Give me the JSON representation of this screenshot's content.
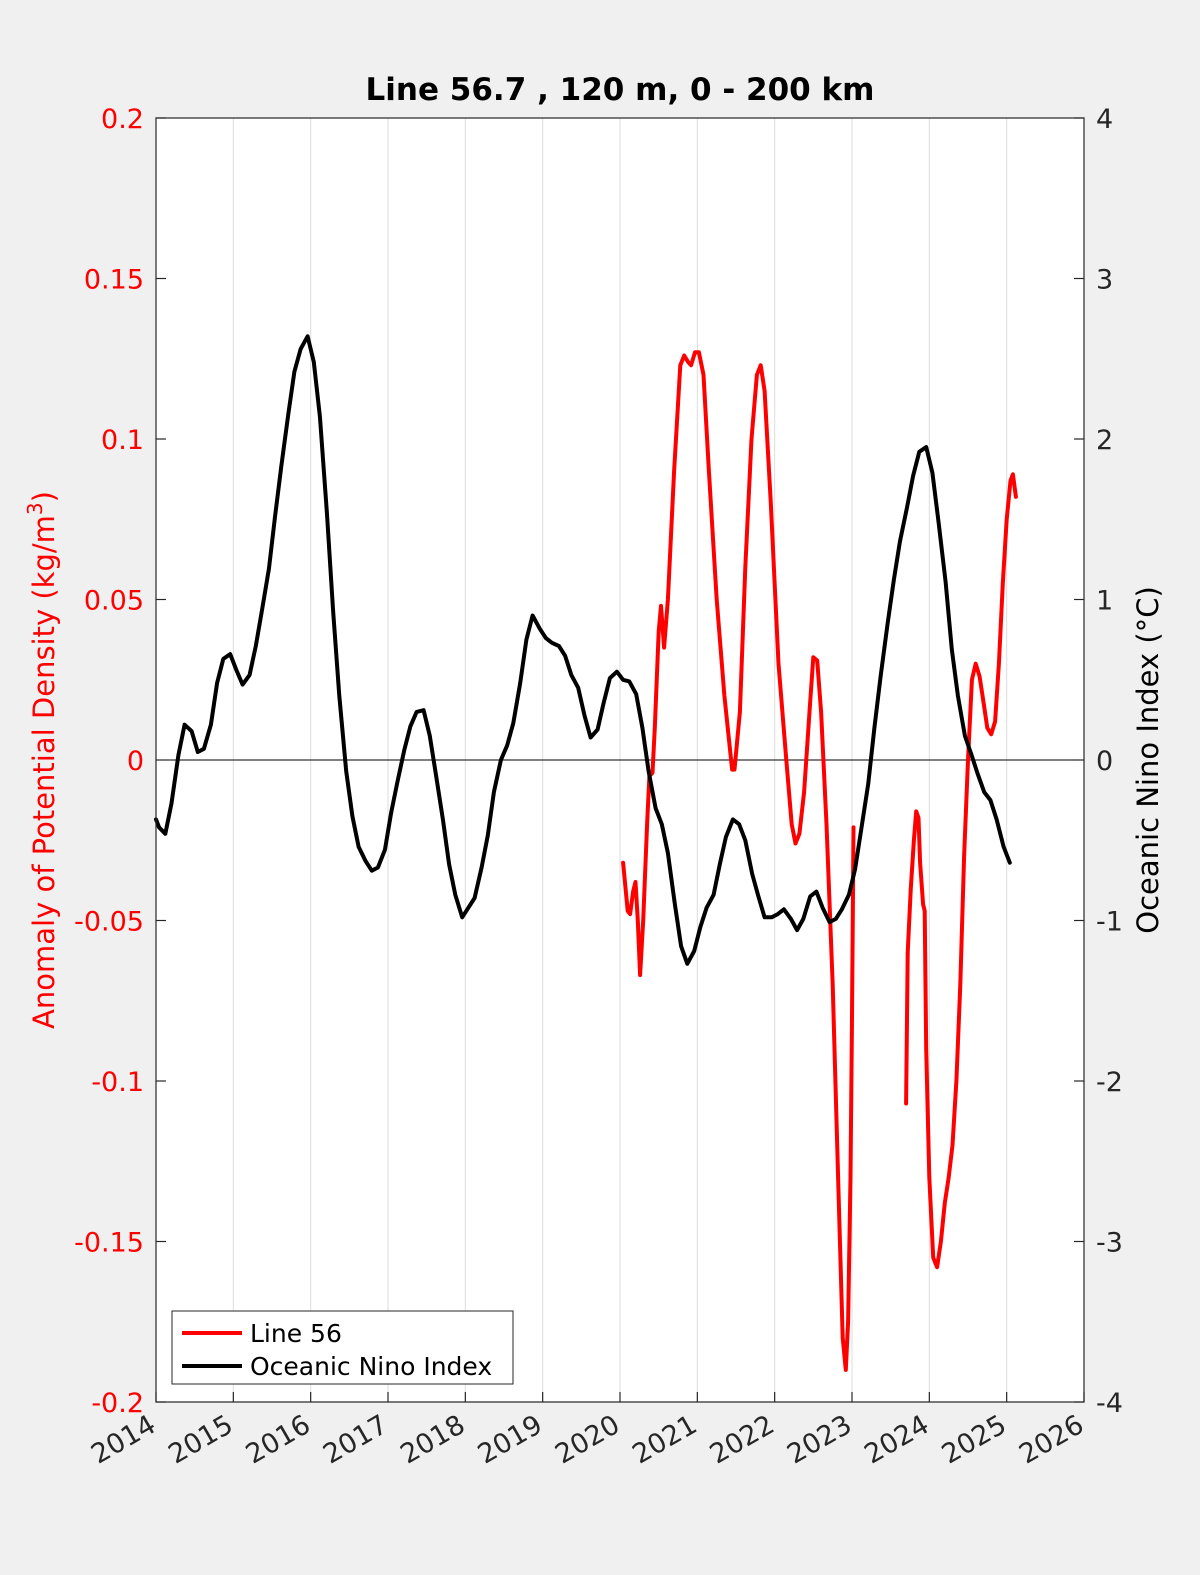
{
  "chart_data": {
    "type": "line",
    "title": "Line 56.7 , 120 m, 0 - 200 km",
    "ylabel_left": "Anomaly of Potential Density (kg/m",
    "ylabel_left_sup": "3",
    "ylabel_left_tail": ")",
    "ylabel_right": "Oceanic Nino Index (°C)",
    "xlim": [
      2014,
      2026
    ],
    "ylim_left": [
      -0.2,
      0.2
    ],
    "ylim_right": [
      -4,
      4
    ],
    "grid": "vertical",
    "legend_position": "bottom-left",
    "x_ticks": [
      2014,
      2015,
      2016,
      2017,
      2018,
      2019,
      2020,
      2021,
      2022,
      2023,
      2024,
      2025,
      2026
    ],
    "x_tick_labels": [
      "2014",
      "2015",
      "2016",
      "2017",
      "2018",
      "2019",
      "2020",
      "2021",
      "2022",
      "2023",
      "2024",
      "2025",
      "2026"
    ],
    "y_left_ticks": [
      0.2,
      0.15,
      0.1,
      0.05,
      0,
      -0.05,
      -0.1,
      -0.15,
      -0.2
    ],
    "y_left_tick_labels": [
      "0.2",
      "0.15",
      "0.1",
      "0.05",
      "0",
      "-0.05",
      "-0.1",
      "-0.15",
      "-0.2"
    ],
    "y_right_ticks": [
      4,
      3,
      2,
      1,
      0,
      -1,
      -2,
      -3,
      -4
    ],
    "y_right_tick_labels": [
      "4",
      "3",
      "2",
      "1",
      "0",
      "-1",
      "-2",
      "-3",
      "-4"
    ],
    "colors": {
      "line56": "#ff0000",
      "oni": "#000000",
      "left_axis": "#ff0000",
      "right_axis": "#262626"
    },
    "series": [
      {
        "name": "Line 56",
        "axis": "left",
        "color": "#ff0000",
        "segments": [
          [
            [
              2020.04,
              -0.032
            ],
            [
              2020.1,
              -0.047
            ],
            [
              2020.13,
              -0.048
            ],
            [
              2020.17,
              -0.041
            ],
            [
              2020.2,
              -0.038
            ],
            [
              2020.23,
              -0.05
            ],
            [
              2020.26,
              -0.067
            ],
            [
              2020.3,
              -0.05
            ],
            [
              2020.35,
              -0.02
            ],
            [
              2020.38,
              -0.005
            ],
            [
              2020.42,
              -0.004
            ],
            [
              2020.45,
              0.01
            ],
            [
              2020.5,
              0.04
            ],
            [
              2020.53,
              0.048
            ],
            [
              2020.57,
              0.035
            ],
            [
              2020.62,
              0.05
            ],
            [
              2020.7,
              0.09
            ],
            [
              2020.78,
              0.123
            ],
            [
              2020.83,
              0.126
            ],
            [
              2020.88,
              0.124
            ],
            [
              2020.92,
              0.123
            ],
            [
              2020.97,
              0.127
            ],
            [
              2021.02,
              0.127
            ],
            [
              2021.08,
              0.12
            ],
            [
              2021.15,
              0.09
            ],
            [
              2021.25,
              0.05
            ],
            [
              2021.35,
              0.02
            ],
            [
              2021.45,
              -0.003
            ],
            [
              2021.48,
              -0.003
            ],
            [
              2021.55,
              0.015
            ],
            [
              2021.62,
              0.06
            ],
            [
              2021.7,
              0.1
            ],
            [
              2021.77,
              0.12
            ],
            [
              2021.82,
              0.123
            ],
            [
              2021.87,
              0.115
            ],
            [
              2021.95,
              0.08
            ],
            [
              2022.05,
              0.03
            ],
            [
              2022.15,
              0.0
            ],
            [
              2022.22,
              -0.02
            ],
            [
              2022.27,
              -0.026
            ],
            [
              2022.32,
              -0.023
            ],
            [
              2022.38,
              -0.01
            ],
            [
              2022.45,
              0.015
            ],
            [
              2022.5,
              0.032
            ],
            [
              2022.55,
              0.031
            ],
            [
              2022.6,
              0.015
            ],
            [
              2022.67,
              -0.02
            ],
            [
              2022.75,
              -0.07
            ],
            [
              2022.82,
              -0.13
            ],
            [
              2022.88,
              -0.18
            ],
            [
              2022.92,
              -0.19
            ],
            [
              2022.95,
              -0.175
            ],
            [
              2022.98,
              -0.13
            ],
            [
              2023.0,
              -0.08
            ],
            [
              2023.02,
              -0.021
            ]
          ],
          [
            [
              2023.7,
              -0.107
            ],
            [
              2023.72,
              -0.06
            ],
            [
              2023.76,
              -0.04
            ],
            [
              2023.8,
              -0.025
            ],
            [
              2023.83,
              -0.016
            ],
            [
              2023.86,
              -0.018
            ],
            [
              2023.88,
              -0.032
            ],
            [
              2023.92,
              -0.045
            ],
            [
              2023.94,
              -0.047
            ],
            [
              2023.96,
              -0.09
            ],
            [
              2024.0,
              -0.13
            ],
            [
              2024.05,
              -0.155
            ],
            [
              2024.1,
              -0.158
            ],
            [
              2024.15,
              -0.15
            ],
            [
              2024.2,
              -0.138
            ],
            [
              2024.25,
              -0.13
            ],
            [
              2024.3,
              -0.12
            ],
            [
              2024.35,
              -0.1
            ],
            [
              2024.4,
              -0.07
            ],
            [
              2024.45,
              -0.03
            ],
            [
              2024.5,
              0.0
            ],
            [
              2024.55,
              0.025
            ],
            [
              2024.6,
              0.03
            ],
            [
              2024.65,
              0.026
            ],
            [
              2024.7,
              0.018
            ],
            [
              2024.75,
              0.01
            ],
            [
              2024.8,
              0.008
            ],
            [
              2024.85,
              0.012
            ],
            [
              2024.9,
              0.03
            ],
            [
              2024.95,
              0.055
            ],
            [
              2025.0,
              0.075
            ],
            [
              2025.05,
              0.087
            ],
            [
              2025.08,
              0.089
            ],
            [
              2025.12,
              0.082
            ]
          ]
        ]
      },
      {
        "name": "Oceanic Nino Index",
        "axis": "right",
        "color": "#000000",
        "points": [
          [
            2014.0,
            -0.37
          ],
          [
            2014.04,
            -0.42
          ],
          [
            2014.12,
            -0.46
          ],
          [
            2014.2,
            -0.27
          ],
          [
            2014.29,
            0.03
          ],
          [
            2014.37,
            0.22
          ],
          [
            2014.46,
            0.18
          ],
          [
            2014.54,
            0.05
          ],
          [
            2014.62,
            0.07
          ],
          [
            2014.71,
            0.22
          ],
          [
            2014.79,
            0.48
          ],
          [
            2014.87,
            0.63
          ],
          [
            2014.96,
            0.66
          ],
          [
            2015.04,
            0.56
          ],
          [
            2015.12,
            0.47
          ],
          [
            2015.21,
            0.53
          ],
          [
            2015.29,
            0.71
          ],
          [
            2015.37,
            0.93
          ],
          [
            2015.46,
            1.19
          ],
          [
            2015.54,
            1.52
          ],
          [
            2015.62,
            1.83
          ],
          [
            2015.71,
            2.15
          ],
          [
            2015.79,
            2.42
          ],
          [
            2015.87,
            2.56
          ],
          [
            2015.96,
            2.64
          ],
          [
            2016.04,
            2.48
          ],
          [
            2016.12,
            2.14
          ],
          [
            2016.21,
            1.54
          ],
          [
            2016.29,
            0.93
          ],
          [
            2016.37,
            0.4
          ],
          [
            2016.46,
            -0.07
          ],
          [
            2016.54,
            -0.35
          ],
          [
            2016.62,
            -0.54
          ],
          [
            2016.71,
            -0.63
          ],
          [
            2016.79,
            -0.69
          ],
          [
            2016.87,
            -0.67
          ],
          [
            2016.96,
            -0.56
          ],
          [
            2017.04,
            -0.33
          ],
          [
            2017.12,
            -0.14
          ],
          [
            2017.21,
            0.06
          ],
          [
            2017.29,
            0.21
          ],
          [
            2017.37,
            0.3
          ],
          [
            2017.46,
            0.31
          ],
          [
            2017.54,
            0.15
          ],
          [
            2017.62,
            -0.09
          ],
          [
            2017.71,
            -0.37
          ],
          [
            2017.79,
            -0.65
          ],
          [
            2017.87,
            -0.84
          ],
          [
            2017.96,
            -0.98
          ],
          [
            2018.04,
            -0.92
          ],
          [
            2018.12,
            -0.86
          ],
          [
            2018.21,
            -0.67
          ],
          [
            2018.29,
            -0.47
          ],
          [
            2018.37,
            -0.2
          ],
          [
            2018.46,
            0.0
          ],
          [
            2018.54,
            0.09
          ],
          [
            2018.62,
            0.23
          ],
          [
            2018.71,
            0.48
          ],
          [
            2018.79,
            0.75
          ],
          [
            2018.87,
            0.9
          ],
          [
            2018.96,
            0.82
          ],
          [
            2019.04,
            0.76
          ],
          [
            2019.12,
            0.73
          ],
          [
            2019.21,
            0.71
          ],
          [
            2019.29,
            0.65
          ],
          [
            2019.37,
            0.53
          ],
          [
            2019.46,
            0.45
          ],
          [
            2019.54,
            0.28
          ],
          [
            2019.62,
            0.14
          ],
          [
            2019.71,
            0.19
          ],
          [
            2019.79,
            0.36
          ],
          [
            2019.87,
            0.51
          ],
          [
            2019.96,
            0.55
          ],
          [
            2020.04,
            0.5
          ],
          [
            2020.12,
            0.49
          ],
          [
            2020.21,
            0.41
          ],
          [
            2020.29,
            0.2
          ],
          [
            2020.37,
            -0.07
          ],
          [
            2020.46,
            -0.3
          ],
          [
            2020.54,
            -0.4
          ],
          [
            2020.62,
            -0.58
          ],
          [
            2020.71,
            -0.9
          ],
          [
            2020.79,
            -1.16
          ],
          [
            2020.87,
            -1.27
          ],
          [
            2020.96,
            -1.19
          ],
          [
            2021.04,
            -1.04
          ],
          [
            2021.12,
            -0.92
          ],
          [
            2021.21,
            -0.84
          ],
          [
            2021.29,
            -0.65
          ],
          [
            2021.37,
            -0.48
          ],
          [
            2021.46,
            -0.37
          ],
          [
            2021.54,
            -0.4
          ],
          [
            2021.62,
            -0.5
          ],
          [
            2021.71,
            -0.71
          ],
          [
            2021.79,
            -0.85
          ],
          [
            2021.87,
            -0.98
          ],
          [
            2021.96,
            -0.98
          ],
          [
            2022.04,
            -0.96
          ],
          [
            2022.12,
            -0.93
          ],
          [
            2022.21,
            -0.99
          ],
          [
            2022.29,
            -1.06
          ],
          [
            2022.37,
            -0.99
          ],
          [
            2022.46,
            -0.85
          ],
          [
            2022.54,
            -0.82
          ],
          [
            2022.62,
            -0.92
          ],
          [
            2022.71,
            -1.01
          ],
          [
            2022.79,
            -0.99
          ],
          [
            2022.87,
            -0.93
          ],
          [
            2022.96,
            -0.84
          ],
          [
            2023.04,
            -0.68
          ],
          [
            2023.12,
            -0.43
          ],
          [
            2023.21,
            -0.15
          ],
          [
            2023.29,
            0.2
          ],
          [
            2023.37,
            0.52
          ],
          [
            2023.46,
            0.85
          ],
          [
            2023.54,
            1.12
          ],
          [
            2023.62,
            1.36
          ],
          [
            2023.71,
            1.57
          ],
          [
            2023.79,
            1.77
          ],
          [
            2023.87,
            1.92
          ],
          [
            2023.96,
            1.95
          ],
          [
            2024.04,
            1.79
          ],
          [
            2024.12,
            1.48
          ],
          [
            2024.21,
            1.11
          ],
          [
            2024.29,
            0.69
          ],
          [
            2024.37,
            0.4
          ],
          [
            2024.46,
            0.15
          ],
          [
            2024.54,
            0.04
          ],
          [
            2024.62,
            -0.08
          ],
          [
            2024.71,
            -0.2
          ],
          [
            2024.79,
            -0.25
          ],
          [
            2024.87,
            -0.37
          ],
          [
            2024.96,
            -0.54
          ],
          [
            2025.04,
            -0.64
          ]
        ]
      }
    ]
  }
}
